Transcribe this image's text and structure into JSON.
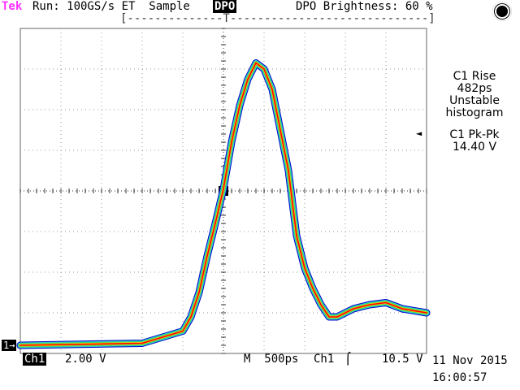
{
  "header": {
    "brand": "Tek",
    "status": "Run: 100GS/s ET  Sample",
    "dpo_badge": "DPO",
    "brightness": "DPO Brightness: 60 %",
    "bracket_bar": "[--------------T-----------------------------]"
  },
  "measurements": {
    "rise": {
      "title": "C1 Rise",
      "value": "482ps",
      "status": "Unstable",
      "note": "histogram"
    },
    "pkpk": {
      "title": "C1 Pk-Pk",
      "value": "14.40 V"
    }
  },
  "footer": {
    "ch1_badge": "Ch1",
    "volts_div": "2.00 V",
    "timebase": "M  500ps",
    "trigger_source": "Ch1",
    "trigger_slope": "⌠",
    "trigger_level": "10.5 V",
    "date": "11 Nov 2015",
    "time": "16:00:57"
  },
  "markers": {
    "ch1_ground": "1→",
    "trigger_pointer": "◄"
  },
  "colors": {
    "brand": "#ff33ff",
    "persistence_hot": "#ff0000",
    "persistence_warm": "#ffcc00",
    "persistence_mid": "#33dd66",
    "persistence_cool": "#33cccc",
    "persistence_cold": "#0000cc"
  },
  "chart_data": {
    "type": "line",
    "title": "",
    "xlabel": "",
    "ylabel": "",
    "x_units": "divisions (500ps/div)",
    "y_units": "divisions (2.00 V/div)",
    "xlim": [
      -5,
      5
    ],
    "ylim": [
      -4,
      4
    ],
    "grid": true,
    "series": [
      {
        "x": [
          -5.0,
          -2.0,
          -1.0,
          -0.8,
          -0.6,
          -0.4,
          -0.2,
          0.0,
          0.2,
          0.4,
          0.6,
          0.8,
          1.0,
          1.2,
          1.4,
          1.6,
          1.8,
          2.0,
          2.2,
          2.4,
          2.6,
          2.8,
          3.2,
          3.6,
          4.0,
          4.4,
          5.0
        ],
        "y": [
          -3.8,
          -3.75,
          -3.45,
          -3.1,
          -2.5,
          -1.6,
          -0.8,
          0.05,
          1.2,
          2.1,
          2.75,
          3.15,
          3.0,
          2.5,
          1.5,
          0.5,
          -1.1,
          -1.9,
          -2.4,
          -2.8,
          -3.1,
          -3.1,
          -2.9,
          -2.8,
          -2.75,
          -2.9,
          -3.0
        ]
      }
    ]
  }
}
